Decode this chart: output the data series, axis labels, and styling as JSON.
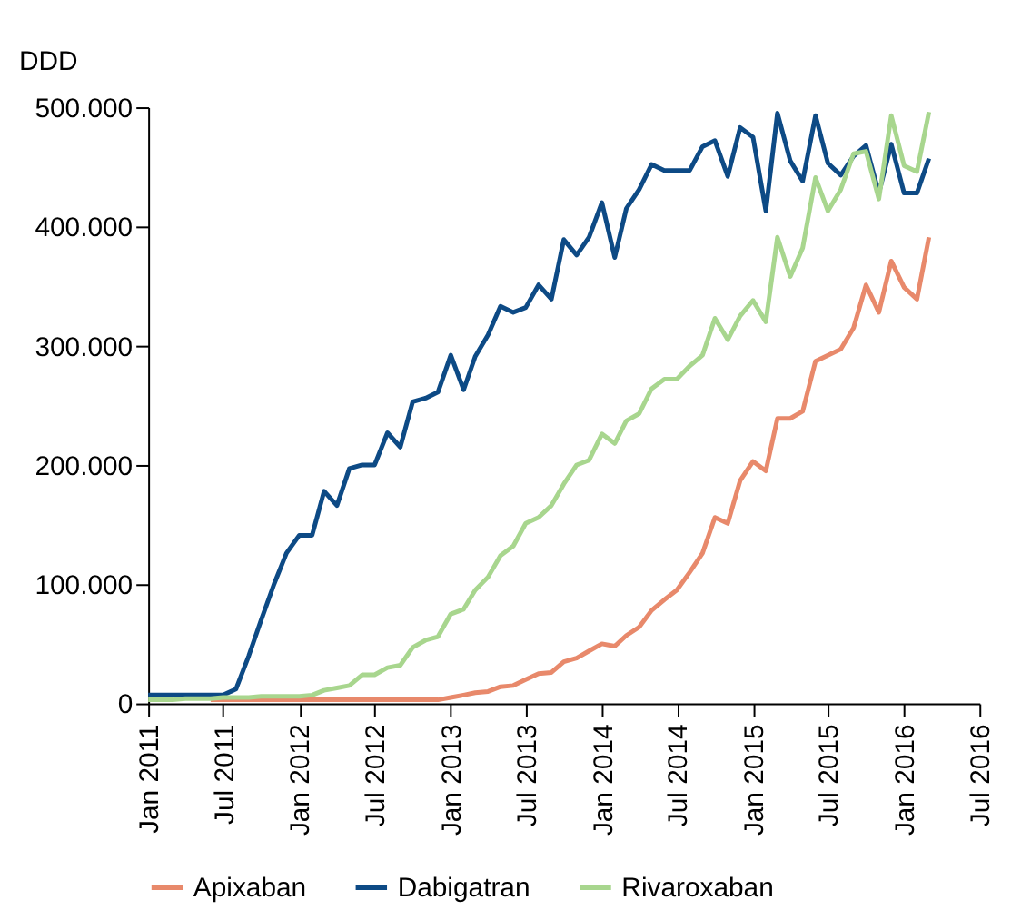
{
  "chart_data": {
    "type": "line",
    "ylabel": "DDD",
    "legend": "bottom",
    "grid": false,
    "marker": "none",
    "line_style": "solid",
    "xlim": [
      "2011-01",
      "2016-07"
    ],
    "xticks": [
      {
        "value": "2011-01",
        "label": "Jan 2011"
      },
      {
        "value": "2011-07",
        "label": "Jul 2011"
      },
      {
        "value": "2012-01",
        "label": "Jan 2012"
      },
      {
        "value": "2012-07",
        "label": "Jul 2012"
      },
      {
        "value": "2013-01",
        "label": "Jan 2013"
      },
      {
        "value": "2013-07",
        "label": "Jul 2013"
      },
      {
        "value": "2014-01",
        "label": "Jan 2014"
      },
      {
        "value": "2014-07",
        "label": "Jul 2014"
      },
      {
        "value": "2015-01",
        "label": "Jan 2015"
      },
      {
        "value": "2015-07",
        "label": "Jul 2015"
      },
      {
        "value": "2016-01",
        "label": "Jan 2016"
      },
      {
        "value": "2016-07",
        "label": "Jul 2016"
      }
    ],
    "ylim": [
      0,
      500000
    ],
    "yticks": [
      0,
      {
        "value": 100000,
        "label": "100.000"
      },
      {
        "value": 200000,
        "label": "200.000"
      },
      {
        "value": 300000,
        "label": "300.000"
      },
      {
        "value": 400000,
        "label": "400.000"
      },
      {
        "value": 500000,
        "label": "500.000"
      }
    ],
    "series": [
      {
        "name": "Apixaban",
        "color": "#e8896b",
        "x": [
          "2011-06",
          "2011-07",
          "2011-08",
          "2011-09",
          "2011-10",
          "2011-11",
          "2011-12",
          "2012-01",
          "2012-02",
          "2012-03",
          "2012-04",
          "2012-05",
          "2012-06",
          "2012-07",
          "2012-08",
          "2012-09",
          "2012-10",
          "2012-11",
          "2012-12",
          "2013-01",
          "2013-02",
          "2013-03",
          "2013-04",
          "2013-05",
          "2013-06",
          "2013-07",
          "2013-08",
          "2013-09",
          "2013-10",
          "2013-11",
          "2013-12",
          "2014-01",
          "2014-02",
          "2014-03",
          "2014-04",
          "2014-05",
          "2014-06",
          "2014-07",
          "2014-08",
          "2014-09",
          "2014-10",
          "2014-11",
          "2014-12",
          "2015-01",
          "2015-02",
          "2015-03",
          "2015-04",
          "2015-05",
          "2015-06",
          "2015-07",
          "2015-08",
          "2015-09",
          "2015-10",
          "2015-11",
          "2015-12",
          "2016-01",
          "2016-02",
          "2016-03"
        ],
        "values": [
          3000,
          3000,
          3000,
          3000,
          3000,
          3000,
          3000,
          3000,
          3000,
          3000,
          3000,
          3000,
          3000,
          3000,
          3000,
          3000,
          3000,
          3000,
          3000,
          5000,
          7000,
          9000,
          10000,
          14000,
          15000,
          20000,
          25000,
          26000,
          35000,
          38000,
          44000,
          50000,
          48000,
          57000,
          64000,
          78000,
          87000,
          95000,
          110000,
          126000,
          156000,
          151000,
          187000,
          203000,
          195000,
          239000,
          239000,
          245000,
          287000,
          292000,
          297000,
          315000,
          351000,
          328000,
          371000,
          349000,
          339000,
          391000
        ]
      },
      {
        "name": "Dabigatran",
        "color": "#0d4a85",
        "x": [
          "2011-01",
          "2011-02",
          "2011-03",
          "2011-04",
          "2011-05",
          "2011-06",
          "2011-07",
          "2011-08",
          "2011-09",
          "2011-10",
          "2011-11",
          "2011-12",
          "2012-01",
          "2012-02",
          "2012-03",
          "2012-04",
          "2012-05",
          "2012-06",
          "2012-07",
          "2012-08",
          "2012-09",
          "2012-10",
          "2012-11",
          "2012-12",
          "2013-01",
          "2013-02",
          "2013-03",
          "2013-04",
          "2013-05",
          "2013-06",
          "2013-07",
          "2013-08",
          "2013-09",
          "2013-10",
          "2013-11",
          "2013-12",
          "2014-01",
          "2014-02",
          "2014-03",
          "2014-04",
          "2014-05",
          "2014-06",
          "2014-07",
          "2014-08",
          "2014-09",
          "2014-10",
          "2014-11",
          "2014-12",
          "2015-01",
          "2015-02",
          "2015-03",
          "2015-04",
          "2015-05",
          "2015-06",
          "2015-07",
          "2015-08",
          "2015-09",
          "2015-10",
          "2015-11",
          "2015-12",
          "2016-01",
          "2016-02",
          "2016-03"
        ],
        "values": [
          7000,
          7000,
          7000,
          7000,
          7000,
          7000,
          7000,
          12000,
          40000,
          70000,
          100000,
          126000,
          141000,
          141000,
          178000,
          166000,
          197000,
          200000,
          200000,
          227000,
          215000,
          253000,
          256000,
          261000,
          292000,
          263000,
          291000,
          309000,
          333000,
          328000,
          332000,
          351000,
          339000,
          389000,
          376000,
          391000,
          420000,
          374000,
          415000,
          431000,
          452000,
          447000,
          447000,
          447000,
          467000,
          472000,
          442000,
          483000,
          475000,
          413000,
          495000,
          455000,
          438000,
          493000,
          453000,
          443000,
          459000,
          468000,
          428000,
          469000,
          428000,
          428000,
          457000
        ]
      },
      {
        "name": "Rivaroxaban",
        "color": "#a8d68e",
        "x": [
          "2011-01",
          "2011-02",
          "2011-03",
          "2011-04",
          "2011-05",
          "2011-06",
          "2011-07",
          "2011-08",
          "2011-09",
          "2011-10",
          "2011-11",
          "2011-12",
          "2012-01",
          "2012-02",
          "2012-03",
          "2012-04",
          "2012-05",
          "2012-06",
          "2012-07",
          "2012-08",
          "2012-09",
          "2012-10",
          "2012-11",
          "2012-12",
          "2013-01",
          "2013-02",
          "2013-03",
          "2013-04",
          "2013-05",
          "2013-06",
          "2013-07",
          "2013-08",
          "2013-09",
          "2013-10",
          "2013-11",
          "2013-12",
          "2014-01",
          "2014-02",
          "2014-03",
          "2014-04",
          "2014-05",
          "2014-06",
          "2014-07",
          "2014-08",
          "2014-09",
          "2014-10",
          "2014-11",
          "2014-12",
          "2015-01",
          "2015-02",
          "2015-03",
          "2015-04",
          "2015-05",
          "2015-06",
          "2015-07",
          "2015-08",
          "2015-09",
          "2015-10",
          "2015-11",
          "2015-12",
          "2016-01",
          "2016-02",
          "2016-03"
        ],
        "values": [
          3000,
          3000,
          3000,
          4000,
          4000,
          4000,
          5000,
          5000,
          5000,
          6000,
          6000,
          6000,
          6000,
          7000,
          11000,
          13000,
          15000,
          24000,
          24000,
          30000,
          32000,
          47000,
          53000,
          56000,
          75000,
          79000,
          95000,
          106000,
          124000,
          132000,
          151000,
          156000,
          166000,
          184000,
          200000,
          204000,
          226000,
          218000,
          237000,
          243000,
          264000,
          272000,
          272000,
          283000,
          292000,
          323000,
          305000,
          325000,
          338000,
          320000,
          391000,
          358000,
          382000,
          441000,
          413000,
          431000,
          461000,
          463000,
          423000,
          493000,
          451000,
          446000,
          496000
        ]
      }
    ]
  }
}
